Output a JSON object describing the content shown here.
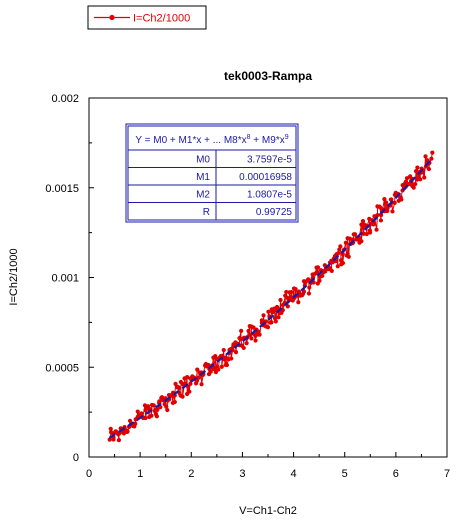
{
  "chart_data": {
    "type": "scatter",
    "title": "tek0003-Rampa",
    "xlabel": "V=Ch1-Ch2",
    "ylabel": "I=Ch2/1000",
    "xlim": [
      0,
      7
    ],
    "ylim": [
      0,
      0.002
    ],
    "x_ticks": [
      "0",
      "1",
      "2",
      "3",
      "4",
      "5",
      "6",
      "7"
    ],
    "y_ticks": [
      "0",
      "0.0005",
      "0.001",
      "0.0015",
      "0.002"
    ],
    "grid": false,
    "legend": {
      "position": "top-left",
      "entries": [
        "I=Ch2/1000"
      ]
    },
    "series": [
      {
        "name": "I=Ch2/1000",
        "color": "#e00000",
        "marker": "circle",
        "x_range": [
          0.4,
          6.7
        ],
        "approx_points": [
          [
            0.4,
            0.00011
          ],
          [
            1.0,
            0.00018
          ],
          [
            1.5,
            0.00027
          ],
          [
            2.0,
            0.0004
          ],
          [
            2.5,
            0.0005
          ],
          [
            3.0,
            0.00063
          ],
          [
            3.5,
            0.00077
          ],
          [
            4.0,
            0.0009
          ],
          [
            4.5,
            0.00104
          ],
          [
            5.0,
            0.00118
          ],
          [
            5.5,
            0.0013
          ],
          [
            6.0,
            0.00145
          ],
          [
            6.5,
            0.0016
          ],
          [
            6.7,
            0.00165
          ]
        ]
      }
    ],
    "fit": {
      "color": "#1a1aa6",
      "equation_prefix": "Y = M0 + M1*x + ... M8*x",
      "equation_exp1": "8",
      "equation_mid": " + M9*x",
      "equation_exp2": "9",
      "coefficients": [
        {
          "name": "M0",
          "value": "3.7597e-5"
        },
        {
          "name": "M1",
          "value": "0.00016958"
        },
        {
          "name": "M2",
          "value": "1.0807e-5"
        },
        {
          "name": "R",
          "value": "0.99725"
        }
      ],
      "m0": 3.7597e-05,
      "m1": 0.00016958,
      "m2": 1.0807e-05
    }
  }
}
